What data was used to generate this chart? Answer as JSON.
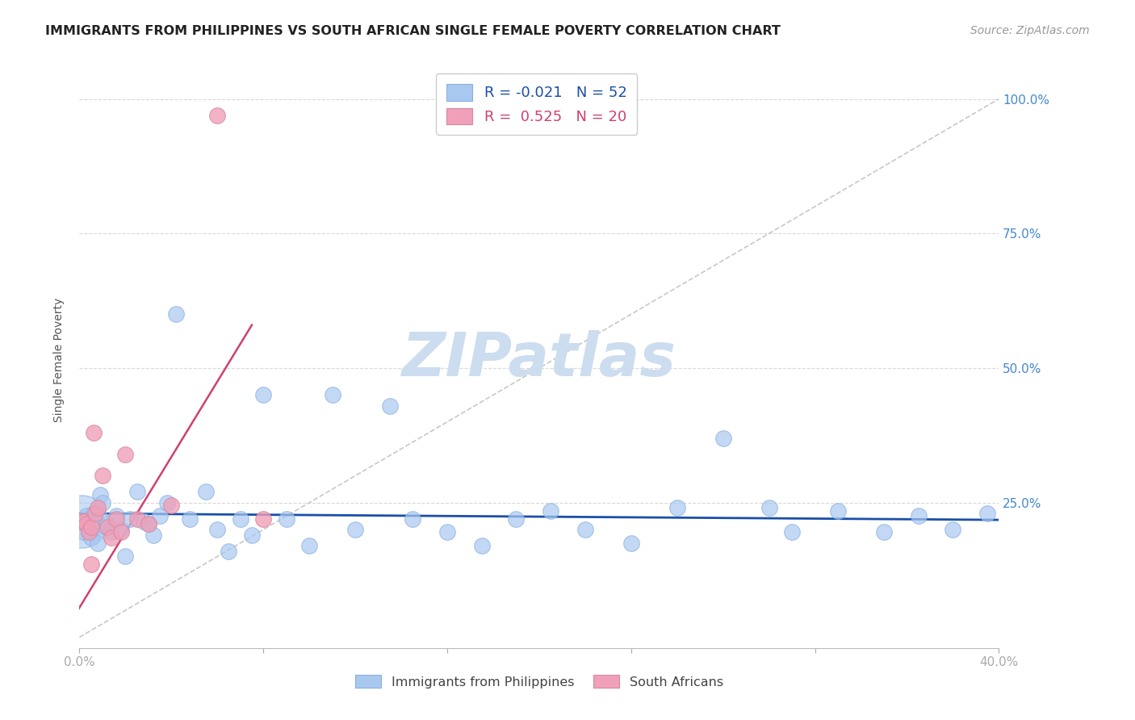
{
  "title": "IMMIGRANTS FROM PHILIPPINES VS SOUTH AFRICAN SINGLE FEMALE POVERTY CORRELATION CHART",
  "source": "Source: ZipAtlas.com",
  "ylabel": "Single Female Poverty",
  "xlim": [
    0.0,
    0.4
  ],
  "ylim": [
    -0.02,
    1.05
  ],
  "blue_color": "#a8c8f0",
  "pink_color": "#f0a0b8",
  "blue_line_color": "#1a4faa",
  "pink_line_color": "#d04070",
  "diag_line_color": "#c8c8c8",
  "title_color": "#222222",
  "source_color": "#999999",
  "right_label_color": "#4488cc",
  "watermark_color": "#ccddf0",
  "background_color": "#ffffff",
  "grid_color": "#d8d8d8",
  "legend_blue_label": "R = -0.021   N = 52",
  "legend_pink_label": "R =  0.525   N = 20",
  "bottom_legend_labels": [
    "Immigrants from Philippines",
    "South Africans"
  ],
  "blue_scatter_x": [
    0.001,
    0.002,
    0.003,
    0.004,
    0.005,
    0.006,
    0.007,
    0.008,
    0.009,
    0.01,
    0.011,
    0.012,
    0.014,
    0.016,
    0.018,
    0.02,
    0.022,
    0.025,
    0.028,
    0.03,
    0.032,
    0.035,
    0.038,
    0.042,
    0.048,
    0.055,
    0.06,
    0.065,
    0.07,
    0.075,
    0.08,
    0.09,
    0.1,
    0.11,
    0.12,
    0.135,
    0.145,
    0.16,
    0.175,
    0.19,
    0.205,
    0.22,
    0.24,
    0.26,
    0.28,
    0.3,
    0.31,
    0.33,
    0.35,
    0.365,
    0.38,
    0.395
  ],
  "blue_scatter_y": [
    0.215,
    0.195,
    0.225,
    0.2,
    0.185,
    0.23,
    0.215,
    0.175,
    0.265,
    0.25,
    0.205,
    0.21,
    0.195,
    0.225,
    0.2,
    0.15,
    0.22,
    0.27,
    0.215,
    0.21,
    0.19,
    0.225,
    0.25,
    0.6,
    0.22,
    0.27,
    0.2,
    0.16,
    0.22,
    0.19,
    0.45,
    0.22,
    0.17,
    0.45,
    0.2,
    0.43,
    0.22,
    0.195,
    0.17,
    0.22,
    0.235,
    0.2,
    0.175,
    0.24,
    0.37,
    0.24,
    0.195,
    0.235,
    0.195,
    0.225,
    0.2,
    0.23
  ],
  "blue_scatter_size_large": 2200,
  "blue_scatter_size_small": 200,
  "blue_large_indices": [
    0
  ],
  "pink_scatter_x": [
    0.001,
    0.002,
    0.003,
    0.004,
    0.005,
    0.006,
    0.007,
    0.008,
    0.01,
    0.012,
    0.014,
    0.016,
    0.018,
    0.02,
    0.025,
    0.03,
    0.04,
    0.06,
    0.08,
    0.005
  ],
  "pink_scatter_y": [
    0.215,
    0.215,
    0.21,
    0.195,
    0.205,
    0.38,
    0.23,
    0.24,
    0.3,
    0.205,
    0.185,
    0.22,
    0.195,
    0.34,
    0.22,
    0.21,
    0.245,
    0.97,
    0.22,
    0.135
  ],
  "pink_scatter_size": 200,
  "blue_trend_x": [
    0.0,
    0.4
  ],
  "blue_trend_y": [
    0.23,
    0.218
  ],
  "pink_trend_x": [
    -0.005,
    0.075
  ],
  "pink_trend_y": [
    0.02,
    0.58
  ],
  "diag_line_x": [
    0.0,
    0.4
  ],
  "diag_line_y": [
    0.0,
    1.0
  ],
  "ytick_positions": [
    0.0,
    0.25,
    0.5,
    0.75,
    1.0
  ],
  "ytick_right_labels": [
    "",
    "25.0%",
    "50.0%",
    "75.0%",
    "100.0%"
  ],
  "xtick_positions": [
    0.0,
    0.08,
    0.16,
    0.24,
    0.32,
    0.4
  ],
  "xtick_labels": [
    "0.0%",
    "",
    "",
    "",
    "",
    "40.0%"
  ]
}
